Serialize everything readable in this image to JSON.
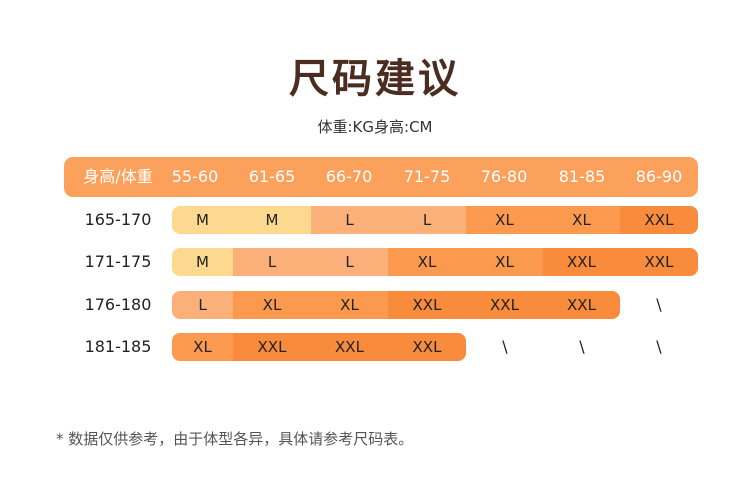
{
  "title": "尺码建议",
  "subtitle": "体重:KG身高:CM",
  "header": {
    "corner": "身高/体重",
    "columns": [
      "55-60",
      "61-65",
      "66-70",
      "71-75",
      "76-80",
      "81-85",
      "86-90"
    ]
  },
  "rows": [
    {
      "label": "165-170",
      "sizes": [
        "M",
        "M",
        "L",
        "L",
        "XL",
        "XL",
        "XXL"
      ]
    },
    {
      "label": "171-175",
      "sizes": [
        "M",
        "L",
        "L",
        "XL",
        "XL",
        "XXL",
        "XXL"
      ]
    },
    {
      "label": "176-180",
      "sizes": [
        "L",
        "XL",
        "XL",
        "XXL",
        "XXL",
        "XXL",
        "\\"
      ]
    },
    {
      "label": "181-185",
      "sizes": [
        "XL",
        "XXL",
        "XXL",
        "XXL",
        "\\",
        "\\",
        "\\"
      ]
    }
  ],
  "colors": {
    "M": "#fcd98e",
    "L": "#fbb07a",
    "XL": "#fb9a4f",
    "XXL": "#f88b3c",
    "header": "#fba15c"
  },
  "note": "* 数据仅供参考，由于体型各异，具体请参考尺码表。"
}
